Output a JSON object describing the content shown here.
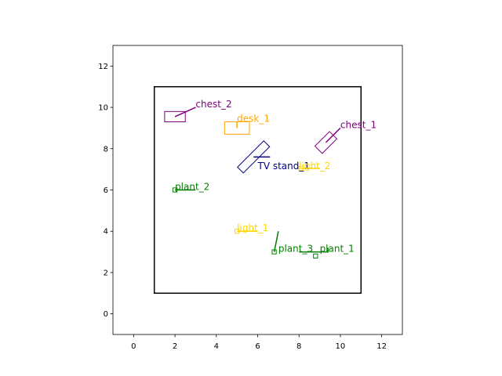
{
  "chart_data": {
    "type": "scatter",
    "title": "",
    "xlabel": "",
    "ylabel": "",
    "xlim": [
      -1,
      13
    ],
    "ylim": [
      -1,
      13
    ],
    "xticks": [
      "0",
      "2",
      "4",
      "6",
      "8",
      "10",
      "12"
    ],
    "yticks": [
      "0",
      "2",
      "4",
      "6",
      "8",
      "10",
      "12"
    ],
    "grid": false,
    "room": {
      "x0": 1,
      "y0": 1,
      "x1": 11,
      "y1": 11,
      "color": "#000000"
    },
    "objects": [
      {
        "label": "chest_2",
        "color": "#800080",
        "cx": 2.0,
        "cy": 9.55,
        "w": 1.0,
        "h": 0.5,
        "angle": 0,
        "dir": [
          3.0,
          10.0
        ],
        "text_at": [
          3.0,
          10.0
        ]
      },
      {
        "label": "desk_1",
        "color": "#FFA500",
        "cx": 5.0,
        "cy": 9.0,
        "w": 1.2,
        "h": 0.6,
        "angle": 0,
        "dir": [
          5.0,
          9.3
        ],
        "text_at": [
          5.0,
          9.3
        ]
      },
      {
        "label": "chest_1",
        "color": "#800080",
        "cx": 9.3,
        "cy": 8.3,
        "w": 1.0,
        "h": 0.5,
        "angle": 45,
        "dir": [
          10.0,
          9.0
        ],
        "text_at": [
          10.0,
          9.0
        ]
      },
      {
        "label": "TV stand_1",
        "color": "#000080",
        "cx": 5.8,
        "cy": 7.6,
        "w": 1.8,
        "h": 0.4,
        "angle": 45,
        "dir": [
          6.6,
          7.6
        ],
        "text_at": [
          6.0,
          7.0
        ]
      },
      {
        "label": "light_2",
        "color": "#FFD700",
        "cx": 8.1,
        "cy": 7.05,
        "w": 0.2,
        "h": 0.2,
        "angle": 0,
        "dir": [
          9.0,
          7.05
        ],
        "text_at": [
          8.0,
          7.0
        ]
      },
      {
        "label": "plant_2",
        "color": "#008000",
        "cx": 2.0,
        "cy": 6.0,
        "w": 0.2,
        "h": 0.2,
        "angle": 0,
        "dir": [
          3.0,
          6.0
        ],
        "text_at": [
          2.0,
          6.0
        ]
      },
      {
        "label": "light_1",
        "color": "#FFD700",
        "cx": 5.0,
        "cy": 4.0,
        "w": 0.2,
        "h": 0.2,
        "angle": 0,
        "dir": [
          6.0,
          4.0
        ],
        "text_at": [
          5.0,
          4.0
        ]
      },
      {
        "label": "plant_3",
        "color": "#008000",
        "cx": 6.8,
        "cy": 3.0,
        "w": 0.2,
        "h": 0.2,
        "angle": 0,
        "dir": [
          7.0,
          4.0
        ],
        "text_at": [
          7.0,
          3.0
        ]
      },
      {
        "label": "plant_1",
        "color": "#008000",
        "cx": 8.8,
        "cy": 2.8,
        "w": 0.2,
        "h": 0.2,
        "angle": 0,
        "dir": [
          8.0,
          3.0
        ],
        "text_at": [
          9.0,
          3.0
        ],
        "dir_line": [
          [
            8.0,
            3.0
          ],
          [
            9.4,
            3.0
          ],
          [
            9.4,
            3.2
          ]
        ]
      }
    ]
  }
}
